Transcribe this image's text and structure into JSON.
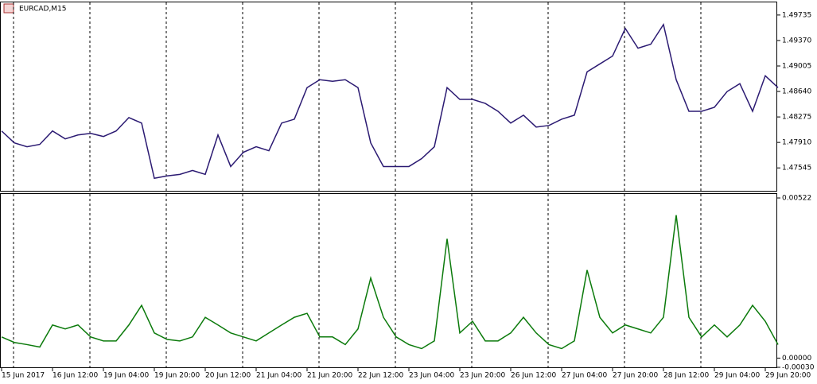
{
  "chart_data": [
    {
      "type": "line",
      "title": "EURCAD,M15",
      "color": "#2b1a72",
      "values": [
        1.48074,
        1.47904,
        1.47848,
        1.47882,
        1.48074,
        1.47961,
        1.48017,
        1.4804,
        1.47995,
        1.48074,
        1.48266,
        1.48187,
        1.47396,
        1.4743,
        1.47452,
        1.47509,
        1.47452,
        1.48017,
        1.47565,
        1.47769,
        1.47848,
        1.47791,
        1.48187,
        1.48243,
        1.48695,
        1.48808,
        1.48786,
        1.48808,
        1.48695,
        1.47904,
        1.47565,
        1.47565,
        1.47565,
        1.47678,
        1.47848,
        1.48695,
        1.48526,
        1.48526,
        1.48469,
        1.48356,
        1.48187,
        1.483,
        1.4813,
        1.48153,
        1.48243,
        1.483,
        1.48921,
        1.49034,
        1.49147,
        1.49543,
        1.4926,
        1.49317,
        1.49599,
        1.48808,
        1.48356,
        1.48356,
        1.48413,
        1.48639,
        1.48752,
        1.48356,
        1.48865,
        1.48695
      ],
      "ylim": [
        1.47217,
        1.49916
      ],
      "yticks": [
        {
          "value": 1.49735,
          "label": "1.49735"
        },
        {
          "value": 1.4937,
          "label": "1.49370"
        },
        {
          "value": 1.49005,
          "label": "1.49005"
        },
        {
          "value": 1.4864,
          "label": "1.48640"
        },
        {
          "value": 1.48275,
          "label": "1.48275"
        },
        {
          "value": 1.4791,
          "label": "1.47910"
        },
        {
          "value": 1.47545,
          "label": "1.47545"
        }
      ]
    },
    {
      "type": "line",
      "color": "#0b7a0b",
      "categories": [
        "15 Jun 2017",
        null,
        null,
        null,
        "16 Jun 12:00",
        null,
        null,
        null,
        "19 Jun 04:00",
        null,
        null,
        null,
        "19 Jun 20:00",
        null,
        null,
        null,
        "20 Jun 12:00",
        null,
        null,
        null,
        "21 Jun 04:00",
        null,
        null,
        null,
        "21 Jun 20:00",
        null,
        null,
        null,
        "22 Jun 12:00",
        null,
        null,
        null,
        "23 Jun 04:00",
        null,
        null,
        null,
        "23 Jun 20:00",
        null,
        null,
        null,
        "26 Jun 12:00",
        null,
        null,
        null,
        "27 Jun 04:00",
        null,
        null,
        null,
        "27 Jun 20:00",
        null,
        null,
        null,
        "28 Jun 12:00",
        null,
        null,
        null,
        "29 Jun 04:00",
        null,
        null,
        null,
        "29 Jun 20:00",
        null
      ],
      "values": [
        0.00069,
        0.00051,
        0.00044,
        0.00036,
        0.00108,
        0.00095,
        0.00108,
        0.00069,
        0.00056,
        0.00056,
        0.00108,
        0.00172,
        0.00082,
        0.00061,
        0.00056,
        0.00069,
        0.00133,
        0.00108,
        0.00082,
        0.00069,
        0.00056,
        0.00082,
        0.00108,
        0.00133,
        0.00146,
        0.00069,
        0.00069,
        0.00044,
        0.00095,
        0.00261,
        0.00133,
        0.00069,
        0.00044,
        0.00031,
        0.00056,
        0.00389,
        0.00082,
        0.0012,
        0.00056,
        0.00056,
        0.00082,
        0.00133,
        0.00082,
        0.00044,
        0.00031,
        0.00056,
        0.00287,
        0.00133,
        0.00082,
        0.00108,
        0.00095,
        0.00082,
        0.00133,
        0.00466,
        0.00133,
        0.00069,
        0.00108,
        0.00069,
        0.00108,
        0.00172,
        0.0012,
        0.00044
      ],
      "ylim": [
        -0.0003,
        0.00535
      ],
      "yticks": [
        {
          "value": 0.00522,
          "label": "0.00522"
        },
        {
          "value": 0,
          "label": "0.00000"
        },
        {
          "value": -0.0003,
          "label": "-0.00030"
        }
      ]
    }
  ]
}
